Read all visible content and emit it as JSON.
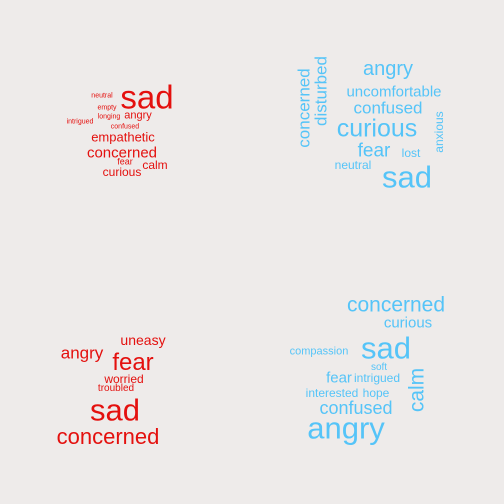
{
  "colors": {
    "red": "#e4100e",
    "blue": "#55c4f8",
    "background": "#eeebea"
  },
  "clouds": [
    {
      "color": "red",
      "words": [
        {
          "text": "sad",
          "rotated": false
        },
        {
          "text": "neutral",
          "rotated": false
        },
        {
          "text": "empty",
          "rotated": false
        },
        {
          "text": "longing",
          "rotated": false
        },
        {
          "text": "angry",
          "rotated": false
        },
        {
          "text": "intrigued",
          "rotated": false
        },
        {
          "text": "confused",
          "rotated": false
        },
        {
          "text": "empathetic",
          "rotated": false
        },
        {
          "text": "concerned",
          "rotated": false
        },
        {
          "text": "fear",
          "rotated": false
        },
        {
          "text": "calm",
          "rotated": false
        },
        {
          "text": "curious",
          "rotated": false
        }
      ]
    },
    {
      "color": "blue",
      "words": [
        {
          "text": "angry",
          "rotated": false
        },
        {
          "text": "uncomfortable",
          "rotated": false
        },
        {
          "text": "confused",
          "rotated": false
        },
        {
          "text": "curious",
          "rotated": false
        },
        {
          "text": "fear",
          "rotated": false
        },
        {
          "text": "lost",
          "rotated": false
        },
        {
          "text": "neutral",
          "rotated": false
        },
        {
          "text": "sad",
          "rotated": false
        },
        {
          "text": "concerned",
          "rotated": true
        },
        {
          "text": "disturbed",
          "rotated": true
        },
        {
          "text": "anxious",
          "rotated": true
        }
      ]
    },
    {
      "color": "red",
      "words": [
        {
          "text": "uneasy",
          "rotated": false
        },
        {
          "text": "angry",
          "rotated": false
        },
        {
          "text": "fear",
          "rotated": false
        },
        {
          "text": "worried",
          "rotated": false
        },
        {
          "text": "troubled",
          "rotated": false
        },
        {
          "text": "sad",
          "rotated": false
        },
        {
          "text": "concerned",
          "rotated": false
        }
      ]
    },
    {
      "color": "blue",
      "words": [
        {
          "text": "concerned",
          "rotated": false
        },
        {
          "text": "curious",
          "rotated": false
        },
        {
          "text": "compassion",
          "rotated": false
        },
        {
          "text": "sad",
          "rotated": false
        },
        {
          "text": "soft",
          "rotated": false
        },
        {
          "text": "fear",
          "rotated": false
        },
        {
          "text": "intrigued",
          "rotated": false
        },
        {
          "text": "interested",
          "rotated": false
        },
        {
          "text": "hope",
          "rotated": false
        },
        {
          "text": "confused",
          "rotated": false
        },
        {
          "text": "angry",
          "rotated": false
        },
        {
          "text": "calm",
          "rotated": true
        }
      ]
    }
  ]
}
